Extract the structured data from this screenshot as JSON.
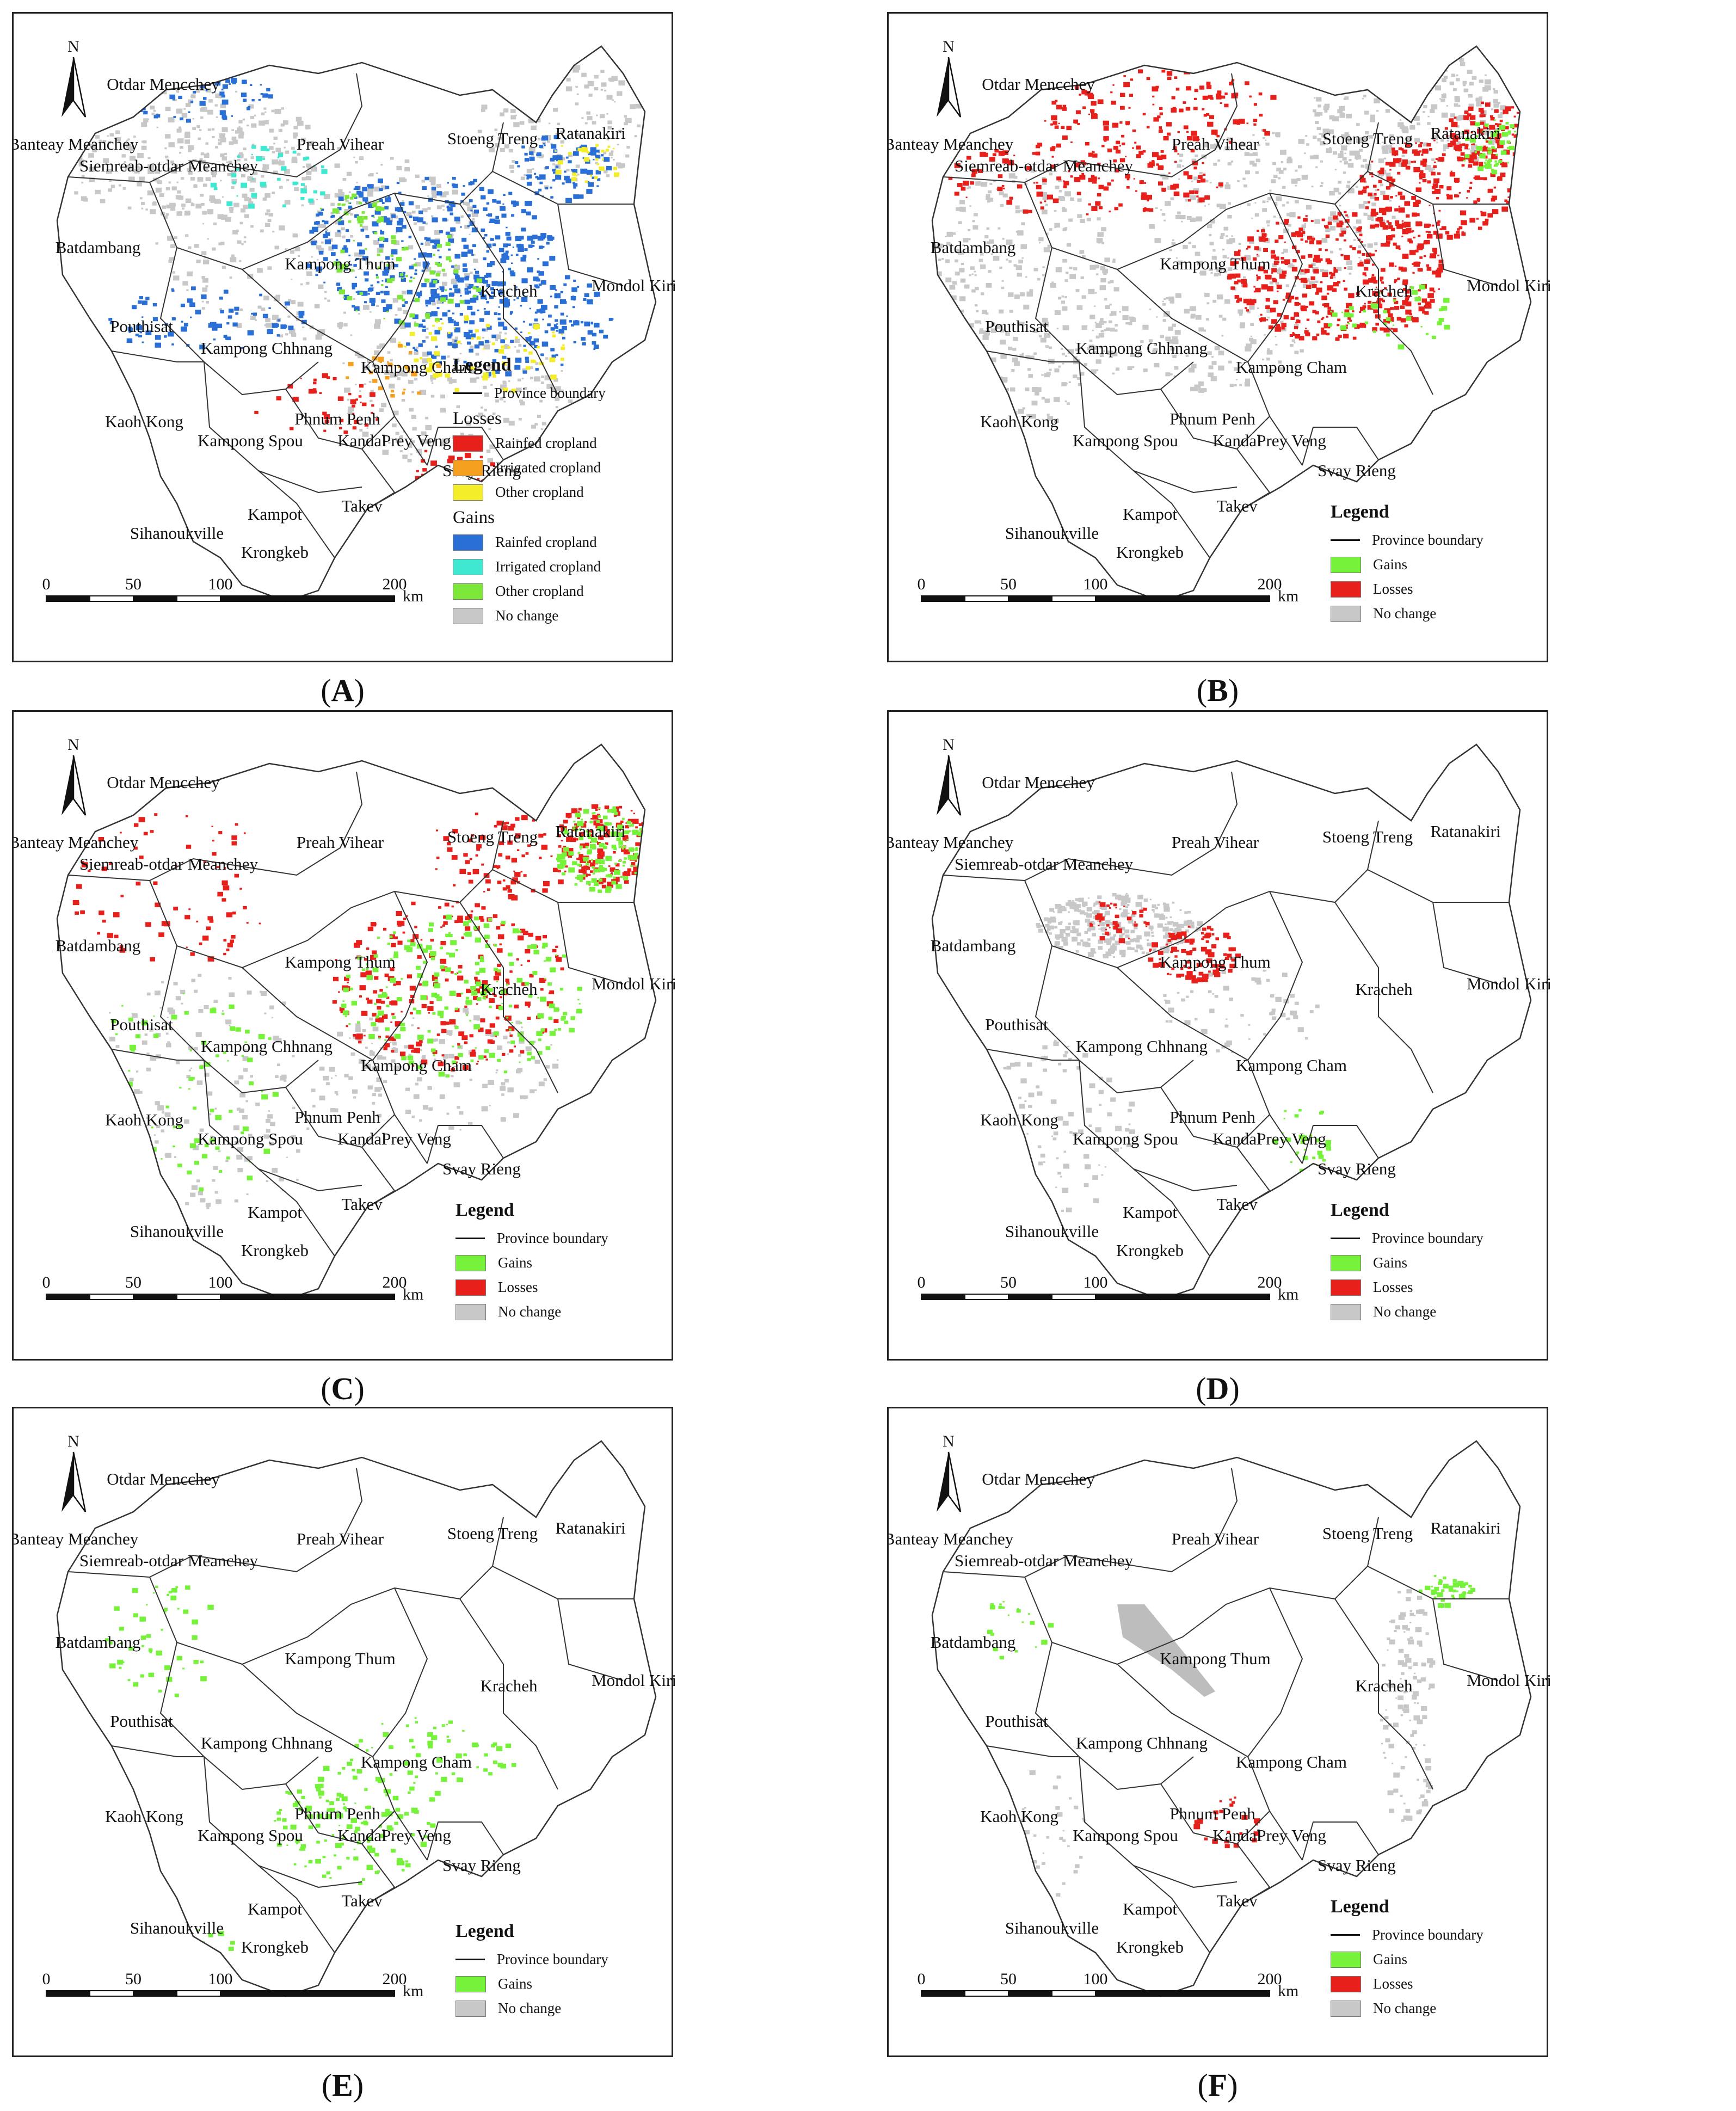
{
  "panels": [
    {
      "caption": "A",
      "legend": {
        "title": "Legend",
        "boundary": "Province boundary",
        "groups": [
          {
            "heading": "Losses",
            "items": [
              {
                "label": "Rainfed cropland",
                "color": "#e8201c"
              },
              {
                "label": "Irrigated cropland",
                "color": "#f5a01e"
              },
              {
                "label": "Other cropland",
                "color": "#f4ee2a"
              }
            ]
          },
          {
            "heading": "Gains",
            "items": [
              {
                "label": "Rainfed cropland",
                "color": "#2a6fd6"
              },
              {
                "label": "Irrigated cropland",
                "color": "#3fe8d0"
              },
              {
                "label": "Other cropland",
                "color": "#7ee83a"
              },
              {
                "label": "No change",
                "color": "#c8c8c8"
              }
            ]
          }
        ]
      }
    },
    {
      "caption": "B",
      "legend": {
        "title": "Legend",
        "boundary": "Province boundary",
        "groups": [
          {
            "heading": "",
            "items": [
              {
                "label": "Gains",
                "color": "#76f23a"
              },
              {
                "label": "Losses",
                "color": "#e8201c"
              },
              {
                "label": "No change",
                "color": "#c8c8c8"
              }
            ]
          }
        ]
      }
    },
    {
      "caption": "C",
      "legend": {
        "title": "Legend",
        "boundary": "Province boundary",
        "groups": [
          {
            "heading": "",
            "items": [
              {
                "label": "Gains",
                "color": "#76f23a"
              },
              {
                "label": "Losses",
                "color": "#e8201c"
              },
              {
                "label": "No change",
                "color": "#c8c8c8"
              }
            ]
          }
        ]
      }
    },
    {
      "caption": "D",
      "legend": {
        "title": "Legend",
        "boundary": "Province boundary",
        "groups": [
          {
            "heading": "",
            "items": [
              {
                "label": "Gains",
                "color": "#76f23a"
              },
              {
                "label": "Losses",
                "color": "#e8201c"
              },
              {
                "label": "No change",
                "color": "#c8c8c8"
              }
            ]
          }
        ]
      }
    },
    {
      "caption": "E",
      "legend": {
        "title": "Legend",
        "boundary": "Province boundary",
        "groups": [
          {
            "heading": "",
            "items": [
              {
                "label": "Gains",
                "color": "#76f23a"
              },
              {
                "label": "No change",
                "color": "#c8c8c8"
              }
            ]
          }
        ]
      }
    },
    {
      "caption": "F",
      "legend": {
        "title": "Legend",
        "boundary": "Province boundary",
        "groups": [
          {
            "heading": "",
            "items": [
              {
                "label": "Gains",
                "color": "#76f23a"
              },
              {
                "label": "Losses",
                "color": "#e8201c"
              },
              {
                "label": "No change",
                "color": "#c8c8c8"
              }
            ]
          }
        ]
      }
    }
  ],
  "north_label": "N",
  "scale": {
    "ticks": [
      "0",
      "50",
      "100",
      "200"
    ],
    "unit": "km"
  },
  "provinces": [
    "Otdar Mencchey",
    "Banteay Meanchey",
    "Siemreab-otdar Meanchey",
    "Preah Vihear",
    "Stoeng Treng",
    "Ratanakiri",
    "Batdambang",
    "Kampong Thum",
    "Kracheh",
    "Mondol Kiri",
    "Pouthisat",
    "Kampong Chhnang",
    "Kampong Cham",
    "Kaoh Kong",
    "Phnum Penh",
    "Kampong Spou",
    "Kandal",
    "Prey Veng",
    "Svay Rieng",
    "Kampot",
    "Takev",
    "Sihanoukville",
    "Krongkeb"
  ]
}
